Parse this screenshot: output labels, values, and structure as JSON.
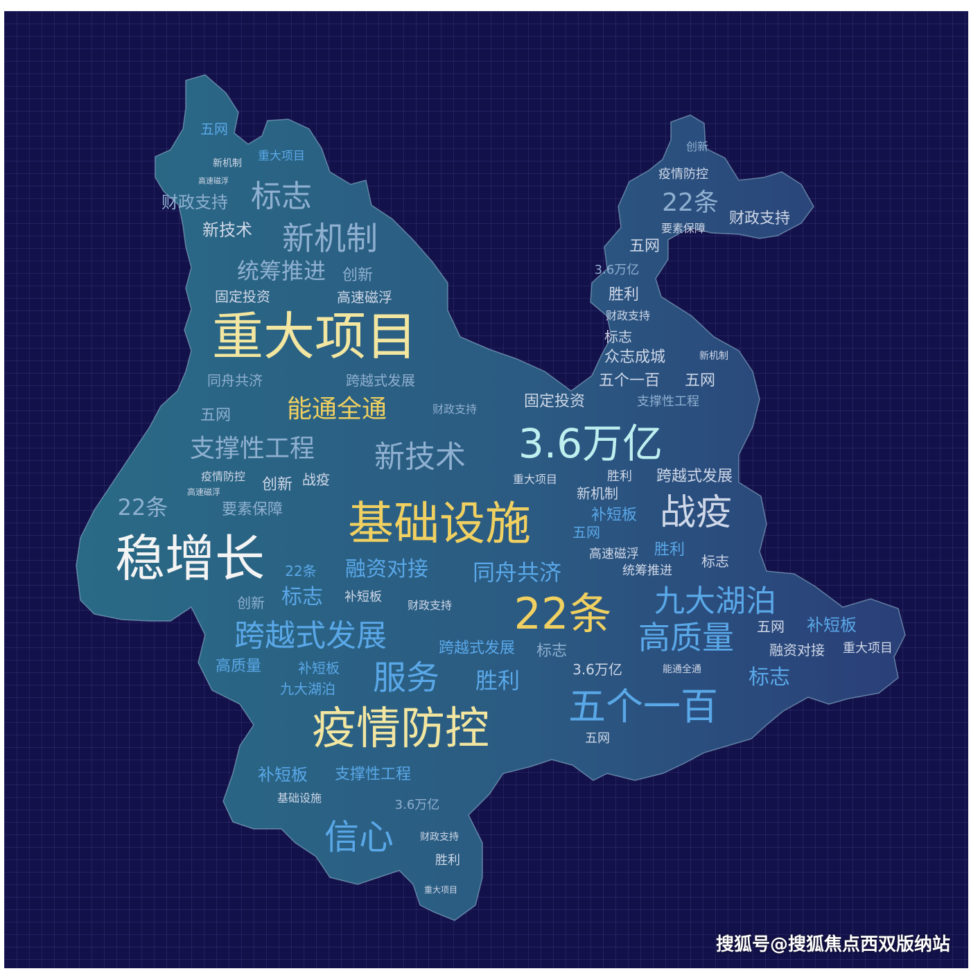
{
  "colors": {
    "background": "#13114a",
    "grid": "#5a5fa8",
    "map_fill_left": "#2a6a86",
    "map_fill_right": "#2a3f78",
    "map_edge": "#8fb6cc"
  },
  "watermark": "搜狐号@搜狐焦点西双版纳站",
  "words": [
    {
      "text": "五网",
      "color": "#5aa8e8"
    },
    {
      "text": "重大项目",
      "color": "#5aa8e8"
    },
    {
      "text": "新机制",
      "color": "#cfd8e8"
    },
    {
      "text": "高速磁浮",
      "color": "#cfd8e8"
    },
    {
      "text": "财政支持",
      "color": "#8fb0d0"
    },
    {
      "text": "标志",
      "color": "#8fb0d0"
    },
    {
      "text": "新技术",
      "color": "#cfd8e8"
    },
    {
      "text": "新机制",
      "color": "#8fb0d0"
    },
    {
      "text": "统筹推进",
      "color": "#8fb0d0"
    },
    {
      "text": "创新",
      "color": "#8fb0d0"
    },
    {
      "text": "固定投资",
      "color": "#cfd8e8"
    },
    {
      "text": "高速磁浮",
      "color": "#cfd8e8"
    },
    {
      "text": "重大项目",
      "color": "#f2e6a0"
    },
    {
      "text": "同舟共济",
      "color": "#8fb0d0"
    },
    {
      "text": "跨越式发展",
      "color": "#8fb0d0"
    },
    {
      "text": "五网",
      "color": "#8fb0d0"
    },
    {
      "text": "能通全通",
      "color": "#f0d060"
    },
    {
      "text": "财政支持",
      "color": "#8fb0d0"
    },
    {
      "text": "支撑性工程",
      "color": "#8fb0d0"
    },
    {
      "text": "新技术",
      "color": "#8fb0d0"
    },
    {
      "text": "疫情防控",
      "color": "#cfd8e8"
    },
    {
      "text": "创新",
      "color": "#cfd8e8"
    },
    {
      "text": "战疫",
      "color": "#cfd8e8"
    },
    {
      "text": "高速磁浮",
      "color": "#cfd8e8"
    },
    {
      "text": "22条",
      "color": "#8fb0d0"
    },
    {
      "text": "要素保障",
      "color": "#8fb0d0"
    },
    {
      "text": "稳增长",
      "color": "#f4f4f4"
    },
    {
      "text": "基础设施",
      "color": "#f0d060"
    },
    {
      "text": "22条",
      "color": "#5aa8e8"
    },
    {
      "text": "融资对接",
      "color": "#5aa8e8"
    },
    {
      "text": "同舟共济",
      "color": "#5aa8e8"
    },
    {
      "text": "创新",
      "color": "#8fb0d0"
    },
    {
      "text": "标志",
      "color": "#5aa8e8"
    },
    {
      "text": "补短板",
      "color": "#cfd8e8"
    },
    {
      "text": "财政支持",
      "color": "#cfd8e8"
    },
    {
      "text": "跨越式发展",
      "color": "#5aa8e8"
    },
    {
      "text": "高质量",
      "color": "#5aa8e8"
    },
    {
      "text": "补短板",
      "color": "#5aa8e8"
    },
    {
      "text": "九大湖泊",
      "color": "#5aa8e8"
    },
    {
      "text": "服务",
      "color": "#5aa8e8"
    },
    {
      "text": "胜利",
      "color": "#5aa8e8"
    },
    {
      "text": "疫情防控",
      "color": "#f2e6a0"
    },
    {
      "text": "补短板",
      "color": "#5aa8e8"
    },
    {
      "text": "支撑性工程",
      "color": "#5aa8e8"
    },
    {
      "text": "基础设施",
      "color": "#cfd8e8"
    },
    {
      "text": "3.6万亿",
      "color": "#8fb0d0"
    },
    {
      "text": "信心",
      "color": "#5aa8e8"
    },
    {
      "text": "财政支持",
      "color": "#cfd8e8"
    },
    {
      "text": "胜利",
      "color": "#cfd8e8"
    },
    {
      "text": "重大项目",
      "color": "#cfd8e8"
    },
    {
      "text": "创新",
      "color": "#8fb0d0"
    },
    {
      "text": "疫情防控",
      "color": "#cfd8e8"
    },
    {
      "text": "22条",
      "color": "#8fb0d0"
    },
    {
      "text": "要素保障",
      "color": "#cfd8e8"
    },
    {
      "text": "财政支持",
      "color": "#cfd8e8"
    },
    {
      "text": "五网",
      "color": "#cfd8e8"
    },
    {
      "text": "3.6万亿",
      "color": "#8fb0d0"
    },
    {
      "text": "胜利",
      "color": "#cfd8e8"
    },
    {
      "text": "财政支持",
      "color": "#cfd8e8"
    },
    {
      "text": "标志",
      "color": "#cfd8e8"
    },
    {
      "text": "众志成城",
      "color": "#cfd8e8"
    },
    {
      "text": "新机制",
      "color": "#cfd8e8"
    },
    {
      "text": "五个一百",
      "color": "#cfd8e8"
    },
    {
      "text": "五网",
      "color": "#cfd8e8"
    },
    {
      "text": "固定投资",
      "color": "#cfd8e8"
    },
    {
      "text": "支撑性工程",
      "color": "#8fb0d0"
    },
    {
      "text": "3.6万亿",
      "color": "#bff0f0"
    },
    {
      "text": "重大项目",
      "color": "#cfd8e8"
    },
    {
      "text": "胜利",
      "color": "#cfd8e8"
    },
    {
      "text": "跨越式发展",
      "color": "#cfd8e8"
    },
    {
      "text": "新机制",
      "color": "#cfd8e8"
    },
    {
      "text": "补短板",
      "color": "#5aa8e8"
    },
    {
      "text": "战疫",
      "color": "#cfd8e8"
    },
    {
      "text": "五网",
      "color": "#5aa8e8"
    },
    {
      "text": "高速磁浮",
      "color": "#cfd8e8"
    },
    {
      "text": "胜利",
      "color": "#5aa8e8"
    },
    {
      "text": "标志",
      "color": "#cfd8e8"
    },
    {
      "text": "统筹推进",
      "color": "#cfd8e8"
    },
    {
      "text": "22条",
      "color": "#f0d060"
    },
    {
      "text": "九大湖泊",
      "color": "#5aa8e8"
    },
    {
      "text": "高质量",
      "color": "#5aa8e8"
    },
    {
      "text": "五网",
      "color": "#cfd8e8"
    },
    {
      "text": "补短板",
      "color": "#5aa8e8"
    },
    {
      "text": "跨越式发展",
      "color": "#5aa8e8"
    },
    {
      "text": "标志",
      "color": "#8fb0d0"
    },
    {
      "text": "融资对接",
      "color": "#cfd8e8"
    },
    {
      "text": "重大项目",
      "color": "#cfd8e8"
    },
    {
      "text": "3.6万亿",
      "color": "#cfd8e8"
    },
    {
      "text": "能通全通",
      "color": "#cfd8e8"
    },
    {
      "text": "标志",
      "color": "#5aa8e8"
    },
    {
      "text": "五个一百",
      "color": "#5aa8e8"
    },
    {
      "text": "五网",
      "color": "#cfd8e8"
    }
  ]
}
